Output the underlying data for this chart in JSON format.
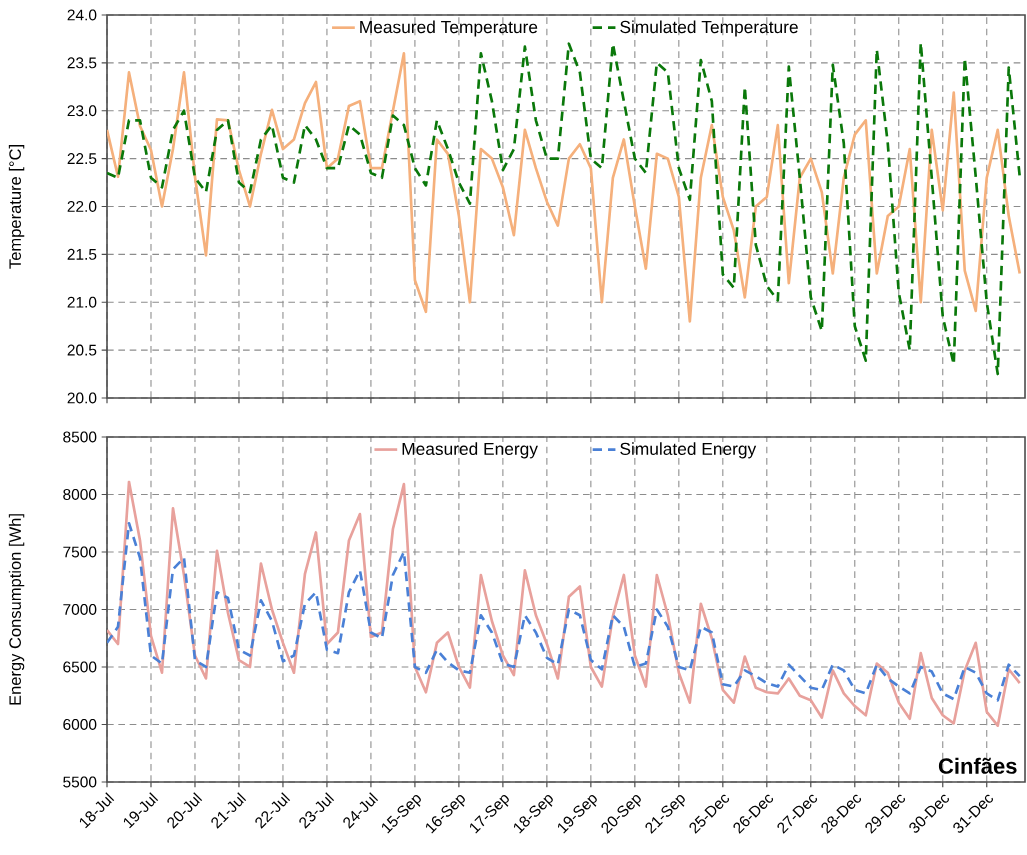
{
  "chart_data": [
    {
      "type": "line",
      "ylabel": "Temperature [°C]",
      "ylim": [
        20,
        24
      ],
      "grid": true,
      "legend": "top",
      "tick_labels": "y",
      "categories": [
        null,
        null,
        null,
        null,
        null,
        null,
        null,
        null,
        null,
        null,
        null,
        null,
        null,
        null,
        null,
        null,
        null,
        null,
        null,
        null,
        null,
        null,
        null,
        null,
        null,
        null,
        null,
        null,
        null,
        null,
        null,
        null,
        null,
        null,
        null,
        null,
        null,
        null,
        null,
        null,
        null,
        null,
        null,
        null,
        null,
        null,
        null,
        null,
        null,
        null,
        null,
        null,
        null,
        null,
        null,
        null,
        null,
        null,
        null,
        null,
        null,
        null,
        null,
        null,
        null,
        null,
        null,
        null,
        null,
        null,
        null,
        null,
        null,
        null,
        null,
        null,
        null,
        null,
        null,
        null,
        null,
        null,
        null,
        null
      ],
      "yticks": [
        {
          "value": 20,
          "label": "20.0"
        },
        {
          "value": 20.5,
          "label": "20.5"
        },
        {
          "value": 21,
          "label": "21.0"
        },
        {
          "value": 21.5,
          "label": "21.5"
        },
        {
          "value": 22,
          "label": "22.0"
        },
        {
          "value": 22.5,
          "label": "22.5"
        },
        {
          "value": 23,
          "label": "23.0"
        },
        {
          "value": 23.5,
          "label": "23.5"
        },
        {
          "value": 24,
          "label": "24.0"
        }
      ],
      "series": [
        {
          "name": "Measured Temperature",
          "color": "#f5b07c",
          "line_style": "solid",
          "values": [
            22.8,
            22.31,
            23.4,
            22.84,
            22.59,
            22.0,
            22.6,
            23.4,
            22.31,
            21.49,
            22.91,
            22.9,
            22.38,
            22.0,
            22.55,
            23.01,
            22.6,
            22.7,
            23.08,
            23.3,
            22.4,
            22.5,
            23.05,
            23.1,
            22.4,
            22.4,
            23.0,
            23.6,
            21.23,
            20.9,
            22.7,
            22.55,
            21.9,
            21.0,
            22.6,
            22.5,
            22.2,
            21.7,
            22.8,
            22.4,
            22.05,
            21.8,
            22.5,
            22.65,
            22.4,
            21.0,
            22.3,
            22.7,
            22.0,
            21.35,
            22.55,
            22.5,
            22.1,
            20.8,
            22.3,
            22.85,
            22.1,
            21.75,
            21.05,
            22.0,
            22.1,
            22.85,
            21.2,
            22.3,
            22.5,
            22.15,
            21.3,
            22.3,
            22.75,
            22.9,
            21.3,
            21.9,
            22.0,
            22.6,
            21.0,
            22.8,
            21.96,
            23.19,
            21.33,
            20.91,
            22.3,
            22.8,
            21.9,
            21.3
          ]
        },
        {
          "name": "Simulated Temperature",
          "color": "#0a780a",
          "line_style": "dashed",
          "values": [
            22.35,
            22.3,
            22.9,
            22.9,
            22.3,
            22.2,
            22.8,
            23.0,
            22.3,
            22.15,
            22.8,
            22.9,
            22.25,
            22.15,
            22.7,
            22.85,
            22.3,
            22.25,
            22.85,
            22.7,
            22.4,
            22.4,
            22.85,
            22.75,
            22.35,
            22.3,
            22.95,
            22.85,
            22.4,
            22.22,
            22.9,
            22.6,
            22.25,
            22.03,
            23.6,
            23.1,
            22.38,
            22.6,
            23.67,
            22.9,
            22.5,
            22.5,
            23.7,
            23.4,
            22.5,
            22.4,
            23.7,
            23.1,
            22.5,
            22.35,
            23.5,
            23.4,
            22.4,
            22.07,
            23.53,
            23.1,
            21.29,
            21.15,
            23.25,
            21.6,
            21.17,
            21.02,
            23.46,
            22.3,
            21.05,
            20.7,
            23.48,
            22.66,
            20.75,
            20.39,
            23.64,
            22.66,
            21.1,
            20.5,
            23.71,
            22.3,
            20.85,
            20.35,
            23.55,
            22.31,
            21.0,
            20.25,
            23.45,
            22.31
          ]
        }
      ]
    },
    {
      "type": "line",
      "ylabel": "Energy Consumption [Wh]",
      "ylim": [
        5500,
        8500
      ],
      "grid": true,
      "legend": "top",
      "annotations": [
        "Cinfães"
      ],
      "categories": [
        "18-Jul",
        null,
        null,
        null,
        "19-Jul",
        null,
        null,
        null,
        "20-Jul",
        null,
        null,
        null,
        "21-Jul",
        null,
        null,
        null,
        "22-Jul",
        null,
        null,
        null,
        "23-Jul",
        null,
        null,
        null,
        "24-Jul",
        null,
        null,
        null,
        "15-Sep",
        null,
        null,
        null,
        "16-Sep",
        null,
        null,
        null,
        "17-Sep",
        null,
        null,
        null,
        "18-Sep",
        null,
        null,
        null,
        "19-Sep",
        null,
        null,
        null,
        "20-Sep",
        null,
        null,
        null,
        "21-Sep",
        null,
        null,
        null,
        "25-Dec",
        null,
        null,
        null,
        "26-Dec",
        null,
        null,
        null,
        "27-Dec",
        null,
        null,
        null,
        "28-Dec",
        null,
        null,
        null,
        "29-Dec",
        null,
        null,
        null,
        "30-Dec",
        null,
        null,
        null,
        "31-Dec",
        null,
        null,
        null
      ],
      "yticks": [
        5500,
        6000,
        6500,
        7000,
        7500,
        8000,
        8500
      ],
      "series": [
        {
          "name": "Measured Energy",
          "color": "#e8a19c",
          "line_style": "solid",
          "values": [
            6820,
            6700,
            8110,
            7600,
            6770,
            6450,
            7880,
            7300,
            6600,
            6400,
            7510,
            6970,
            6560,
            6500,
            7400,
            7000,
            6710,
            6450,
            7310,
            7670,
            6700,
            6800,
            7600,
            7830,
            6760,
            6800,
            7700,
            8090,
            6500,
            6280,
            6710,
            6800,
            6500,
            6320,
            7300,
            6900,
            6600,
            6430,
            7340,
            6950,
            6700,
            6400,
            7110,
            7200,
            6500,
            6330,
            6940,
            7300,
            6600,
            6330,
            7300,
            6950,
            6450,
            6190,
            7050,
            6750,
            6300,
            6190,
            6590,
            6320,
            6280,
            6270,
            6400,
            6250,
            6210,
            6060,
            6470,
            6270,
            6160,
            6080,
            6530,
            6450,
            6190,
            6050,
            6620,
            6230,
            6080,
            6010,
            6470,
            6710,
            6110,
            5990,
            6480,
            6360
          ]
        },
        {
          "name": "Simulated Energy",
          "color": "#4a80d6",
          "line_style": "dashed",
          "values": [
            6710,
            6850,
            7750,
            7450,
            6600,
            6530,
            7350,
            7450,
            6560,
            6500,
            7150,
            7100,
            6650,
            6600,
            7080,
            6900,
            6550,
            6600,
            7050,
            7150,
            6650,
            6620,
            7150,
            7340,
            6800,
            6750,
            7300,
            7500,
            6500,
            6450,
            6650,
            6540,
            6470,
            6450,
            6950,
            6800,
            6530,
            6500,
            6950,
            6800,
            6580,
            6520,
            7000,
            6950,
            6560,
            6480,
            6950,
            6850,
            6500,
            6530,
            7000,
            6850,
            6500,
            6470,
            6850,
            6800,
            6350,
            6330,
            6470,
            6420,
            6360,
            6330,
            6520,
            6420,
            6320,
            6300,
            6520,
            6470,
            6300,
            6270,
            6520,
            6400,
            6330,
            6270,
            6500,
            6460,
            6270,
            6220,
            6500,
            6450,
            6270,
            6210,
            6520,
            6420
          ]
        }
      ]
    }
  ]
}
